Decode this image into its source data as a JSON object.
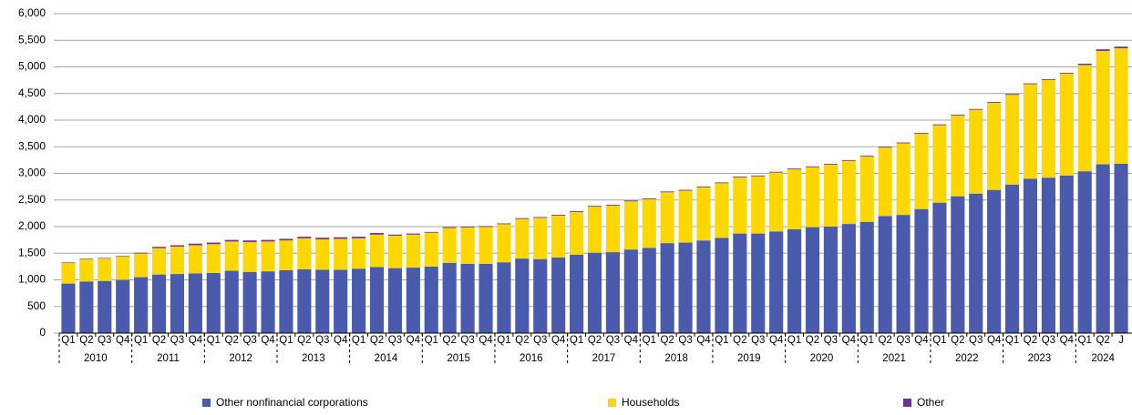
{
  "chart_data": {
    "type": "stacked_bar",
    "categories": [
      "Q1",
      "Q2",
      "Q3",
      "Q4",
      "Q1",
      "Q2",
      "Q3",
      "Q4",
      "Q1",
      "Q2",
      "Q3",
      "Q4",
      "Q1",
      "Q2",
      "Q3",
      "Q4",
      "Q1",
      "Q2",
      "Q3",
      "Q4",
      "Q1",
      "Q2",
      "Q3",
      "Q4",
      "Q1",
      "Q2",
      "Q3",
      "Q4",
      "Q1",
      "Q2",
      "Q3",
      "Q4",
      "Q1",
      "Q2",
      "Q3",
      "Q4",
      "Q1",
      "Q2",
      "Q3",
      "Q4",
      "Q1",
      "Q2",
      "Q3",
      "Q4",
      "Q1",
      "Q2",
      "Q3",
      "Q4",
      "Q1",
      "Q2",
      "Q3",
      "Q4",
      "Q1",
      "Q2",
      "Q3",
      "Q4",
      "Q1",
      "Q2",
      "J"
    ],
    "years": [
      "2010",
      "2011",
      "2012",
      "2013",
      "2014",
      "2015",
      "2016",
      "2017",
      "2018",
      "2019",
      "2020",
      "2021",
      "2022",
      "2023",
      "2024"
    ],
    "series": [
      {
        "name": "Other nonfinancial corporations",
        "color": "#4a5aad",
        "values": [
          930,
          970,
          980,
          1000,
          1050,
          1100,
          1110,
          1120,
          1130,
          1170,
          1150,
          1160,
          1180,
          1200,
          1190,
          1190,
          1210,
          1240,
          1220,
          1230,
          1250,
          1320,
          1300,
          1300,
          1330,
          1400,
          1390,
          1420,
          1470,
          1510,
          1520,
          1570,
          1600,
          1690,
          1700,
          1740,
          1790,
          1870,
          1870,
          1910,
          1950,
          1990,
          2000,
          2050,
          2090,
          2200,
          2220,
          2330,
          2450,
          2570,
          2620,
          2690,
          2790,
          2900,
          2920,
          2960,
          3040,
          3170,
          3180
        ]
      },
      {
        "name": "Households",
        "color": "#ffd700",
        "values": [
          390,
          420,
          420,
          440,
          445,
          495,
          515,
          530,
          540,
          550,
          560,
          560,
          560,
          580,
          570,
          580,
          570,
          610,
          610,
          620,
          635,
          655,
          685,
          695,
          715,
          745,
          775,
          785,
          805,
          865,
          875,
          905,
          915,
          955,
          975,
          995,
          1025,
          1055,
          1075,
          1105,
          1125,
          1125,
          1165,
          1185,
          1225,
          1285,
          1345,
          1415,
          1455,
          1515,
          1575,
          1635,
          1685,
          1775,
          1835,
          1915,
          1995,
          2130,
          2170
        ]
      },
      {
        "name": "Other",
        "color": "#7030a0",
        "values": [
          10,
          10,
          10,
          10,
          15,
          25,
          25,
          30,
          30,
          30,
          30,
          30,
          30,
          30,
          30,
          30,
          30,
          30,
          20,
          20,
          15,
          15,
          15,
          15,
          15,
          15,
          15,
          15,
          15,
          15,
          15,
          15,
          15,
          15,
          15,
          15,
          15,
          15,
          15,
          15,
          15,
          15,
          15,
          15,
          15,
          15,
          15,
          15,
          15,
          15,
          15,
          15,
          15,
          15,
          15,
          15,
          25,
          30,
          30
        ]
      }
    ],
    "ylim": [
      0,
      6000
    ],
    "yticks": [
      0,
      500,
      {
        "value": 1000,
        "label": "1,000"
      },
      {
        "value": 1500,
        "label": "1,500"
      },
      {
        "value": 2000,
        "label": "2,000"
      },
      {
        "value": 2500,
        "label": "2,500"
      },
      {
        "value": 3000,
        "label": "3,000"
      },
      {
        "value": 3500,
        "label": "3,500"
      },
      {
        "value": 4000,
        "label": "4,000"
      },
      {
        "value": 4500,
        "label": "4,500"
      },
      {
        "value": 5000,
        "label": "5,000"
      },
      {
        "value": 5500,
        "label": "5,500"
      },
      {
        "value": 6000,
        "label": "6,000"
      }
    ],
    "grid": true,
    "legend": "bottom"
  }
}
